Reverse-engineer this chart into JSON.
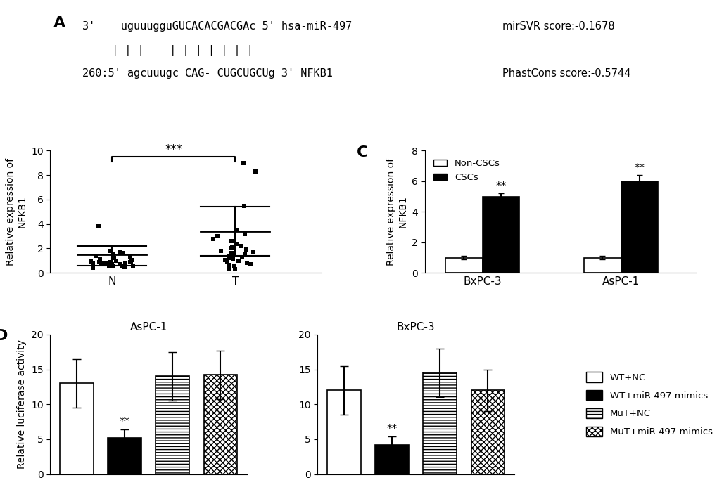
{
  "panel_A": {
    "seq_line1": "3'    uguuugguGUCACACGACGAc 5' hsa-miR-497",
    "seq_line2": "              | | |    | | | | | | |",
    "seq_line3": "260:5' agcuuugc CAG- CUGCUGCUg 3' NFKB1",
    "score1_label": "mirSVR score:-0.1678",
    "score2_label": "PhastCons score:-0.5744"
  },
  "panel_B": {
    "N_points": [
      0.42,
      0.48,
      0.52,
      0.55,
      0.58,
      0.6,
      0.62,
      0.65,
      0.68,
      0.7,
      0.72,
      0.75,
      0.78,
      0.8,
      0.82,
      0.85,
      0.88,
      0.9,
      0.92,
      0.95,
      1.0,
      1.05,
      1.1,
      1.2,
      1.3,
      1.4,
      1.5,
      1.6,
      1.7,
      1.8,
      3.8
    ],
    "T_points": [
      0.28,
      0.38,
      0.55,
      0.65,
      0.72,
      0.8,
      0.9,
      1.0,
      1.05,
      1.1,
      1.2,
      1.3,
      1.4,
      1.5,
      1.55,
      1.6,
      1.7,
      1.8,
      1.9,
      2.0,
      2.1,
      2.2,
      2.4,
      2.6,
      2.8,
      3.0,
      3.2,
      3.5,
      5.5,
      8.3,
      9.0
    ],
    "N_mean": 1.5,
    "N_sd_upper": 2.2,
    "N_sd_lower": 0.6,
    "T_mean": 3.4,
    "T_sd_upper": 5.4,
    "T_sd_lower": 1.4,
    "ylabel": "Relative expression of\nNFKB1",
    "ylim": [
      0,
      10
    ],
    "yticks": [
      0,
      2,
      4,
      6,
      8,
      10
    ],
    "sig_text": "***"
  },
  "panel_C": {
    "categories": [
      "BxPC-3",
      "AsPC-1"
    ],
    "non_csc_values": [
      1.0,
      1.0
    ],
    "csc_values": [
      5.0,
      6.0
    ],
    "non_csc_errors": [
      0.1,
      0.1
    ],
    "csc_errors": [
      0.2,
      0.4
    ],
    "ylabel": "Relative expression of\nNFKB1",
    "ylim": [
      0,
      8
    ],
    "yticks": [
      0,
      2,
      4,
      6,
      8
    ],
    "sig_text": "**"
  },
  "panel_D_AsPC1": {
    "title": "AsPC-1",
    "values": [
      13.0,
      5.2,
      14.0,
      14.2
    ],
    "errors": [
      3.5,
      1.2,
      3.5,
      3.5
    ],
    "ylabel": "Relative luciferase activity",
    "ylim": [
      0,
      20
    ],
    "yticks": [
      0,
      5,
      10,
      15,
      20
    ],
    "sig_text": "**"
  },
  "panel_D_BxPC3": {
    "title": "BxPC-3",
    "values": [
      12.0,
      4.2,
      14.5,
      12.0
    ],
    "errors": [
      3.5,
      1.2,
      3.5,
      3.0
    ],
    "ylabel": "Relative luciferase activity",
    "ylim": [
      0,
      20
    ],
    "yticks": [
      0,
      5,
      10,
      15,
      20
    ],
    "sig_text": "**"
  },
  "legend_D": {
    "labels": [
      "WT+NC",
      "WT+miR-497 mimics",
      "MuT+NC",
      "MuT+miR-497 mimics"
    ]
  },
  "background_color": "#ffffff",
  "panel_label_fontsize": 16,
  "axis_fontsize": 10,
  "tick_fontsize": 10
}
